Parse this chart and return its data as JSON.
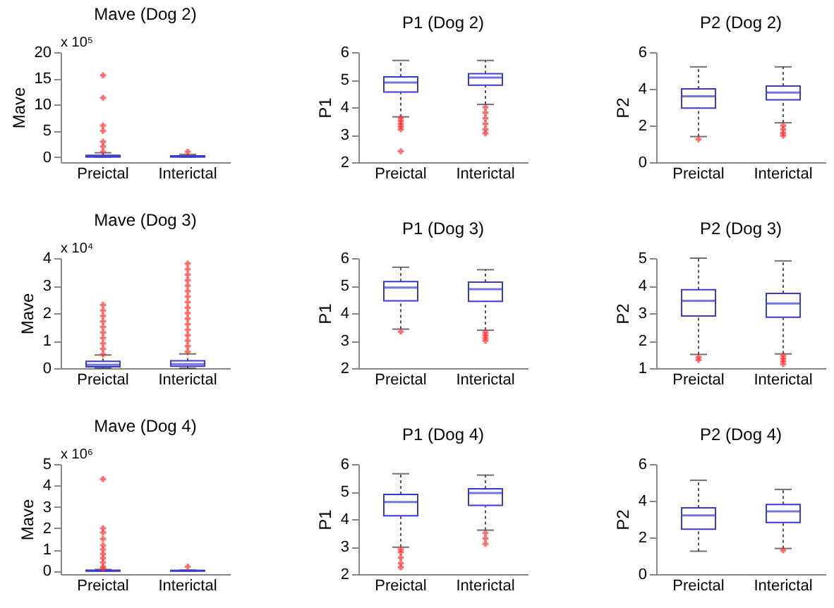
{
  "chart_data": [
    {
      "type": "box",
      "title": "Mave (Dog 2)",
      "ylabel": "Mave",
      "annotations": [
        "x 10⁵"
      ],
      "categories": [
        "Preictal",
        "Interictal"
      ],
      "ylim": [
        -1,
        20
      ],
      "yticks": [
        0,
        5,
        10,
        15,
        20
      ],
      "grid": false,
      "series": [
        {
          "color": "#3a3ad0",
          "boxes": [
            {
              "low": 0,
              "q1": 0,
              "median": 0.1,
              "q3": 0.3,
              "high": 0.8,
              "outliers": [
                1,
                2,
                2.9,
                5,
                6,
                11.3,
                15.6
              ]
            },
            {
              "low": 0,
              "q1": 0,
              "median": 0.1,
              "q3": 0.2,
              "high": 0.5,
              "outliers": [
                1
              ]
            }
          ]
        }
      ]
    },
    {
      "type": "box",
      "title": "P1 (Dog 2)",
      "ylabel": "P1",
      "categories": [
        "Preictal",
        "Interictal"
      ],
      "ylim": [
        2,
        6
      ],
      "yticks": [
        2,
        3,
        4,
        5,
        6
      ],
      "grid": false,
      "series": [
        {
          "color": "#3a3ad0",
          "boxes": [
            {
              "low": 3.65,
              "q1": 4.55,
              "median": 4.9,
              "q3": 5.1,
              "high": 5.7,
              "outliers": [
                3.6,
                3.5,
                3.4,
                3.3,
                3.2,
                2.4
              ]
            },
            {
              "low": 4.1,
              "q1": 4.8,
              "median": 5.08,
              "q3": 5.22,
              "high": 5.7,
              "outliers": [
                4.0,
                3.8,
                3.6,
                3.4,
                3.2,
                3.05
              ]
            }
          ]
        }
      ]
    },
    {
      "type": "box",
      "title": "P2 (Dog 2)",
      "ylabel": "P2",
      "categories": [
        "Preictal",
        "Interictal"
      ],
      "ylim": [
        0,
        6
      ],
      "yticks": [
        0,
        2,
        4,
        6
      ],
      "grid": false,
      "series": [
        {
          "color": "#3a3ad0",
          "boxes": [
            {
              "low": 1.4,
              "q1": 2.95,
              "median": 3.6,
              "q3": 4.0,
              "high": 5.2,
              "outliers": [
                1.25
              ]
            },
            {
              "low": 2.15,
              "q1": 3.4,
              "median": 3.8,
              "q3": 4.15,
              "high": 5.2,
              "outliers": [
                2.0,
                1.8,
                1.6,
                1.45
              ]
            }
          ]
        }
      ]
    },
    {
      "type": "box",
      "title": "Mave (Dog 3)",
      "ylabel": "Mave",
      "annotations": [
        "x 10⁴"
      ],
      "categories": [
        "Preictal",
        "Interictal"
      ],
      "ylim": [
        0,
        4
      ],
      "yticks": [
        0,
        1,
        2,
        3,
        4
      ],
      "grid": false,
      "series": [
        {
          "color": "#3a3ad0",
          "boxes": [
            {
              "low": 0,
              "q1": 0.05,
              "median": 0.12,
              "q3": 0.25,
              "high": 0.48,
              "outliers": [
                0.5,
                0.7,
                0.9,
                1.1,
                1.3,
                1.5,
                1.7,
                1.9,
                2.1,
                2.3
              ]
            },
            {
              "low": 0,
              "q1": 0.07,
              "median": 0.15,
              "q3": 0.27,
              "high": 0.52,
              "outliers": [
                0.6,
                0.8,
                1.0,
                1.2,
                1.4,
                1.6,
                1.8,
                2.0,
                2.2,
                2.4,
                2.6,
                2.8,
                3.0,
                3.2,
                3.4,
                3.6,
                3.8
              ]
            }
          ]
        }
      ]
    },
    {
      "type": "box",
      "title": "P1 (Dog 3)",
      "ylabel": "P1",
      "categories": [
        "Preictal",
        "Interictal"
      ],
      "ylim": [
        2,
        6
      ],
      "yticks": [
        2,
        3,
        4,
        5,
        6
      ],
      "grid": false,
      "series": [
        {
          "color": "#3a3ad0",
          "boxes": [
            {
              "low": 3.42,
              "q1": 4.45,
              "median": 4.93,
              "q3": 5.15,
              "high": 5.67,
              "outliers": [
                3.33
              ]
            },
            {
              "low": 3.38,
              "q1": 4.43,
              "median": 4.87,
              "q3": 5.13,
              "high": 5.58,
              "outliers": [
                3.3,
                3.2,
                3.1,
                3.0
              ]
            }
          ]
        }
      ]
    },
    {
      "type": "box",
      "title": "P2 (Dog 3)",
      "ylabel": "P2",
      "categories": [
        "Preictal",
        "Interictal"
      ],
      "ylim": [
        1,
        5
      ],
      "yticks": [
        1,
        2,
        3,
        4,
        5
      ],
      "grid": false,
      "series": [
        {
          "color": "#3a3ad0",
          "boxes": [
            {
              "low": 1.5,
              "q1": 2.9,
              "median": 3.45,
              "q3": 3.85,
              "high": 5.0,
              "outliers": [
                1.4,
                1.3
              ]
            },
            {
              "low": 1.52,
              "q1": 2.85,
              "median": 3.35,
              "q3": 3.72,
              "high": 4.9,
              "outliers": [
                1.45,
                1.35,
                1.25,
                1.15
              ]
            }
          ]
        }
      ]
    },
    {
      "type": "box",
      "title": "Mave (Dog 4)",
      "ylabel": "Mave",
      "annotations": [
        "x 10⁶"
      ],
      "categories": [
        "Preictal",
        "Interictal"
      ],
      "ylim": [
        -0.15,
        5
      ],
      "yticks": [
        0,
        1,
        2,
        3,
        4,
        5
      ],
      "grid": false,
      "series": [
        {
          "color": "#3a3ad0",
          "boxes": [
            {
              "low": 0,
              "q1": 0,
              "median": 0.01,
              "q3": 0.03,
              "high": 0.07,
              "outliers": [
                0.1,
                0.2,
                0.4,
                0.6,
                0.8,
                1.0,
                1.2,
                1.5,
                1.8,
                2.0,
                4.3
              ]
            },
            {
              "low": 0,
              "q1": 0,
              "median": 0.01,
              "q3": 0.02,
              "high": 0.04,
              "outliers": [
                0.2
              ]
            }
          ]
        }
      ]
    },
    {
      "type": "box",
      "title": "P1 (Dog 4)",
      "ylabel": "P1",
      "categories": [
        "Preictal",
        "Interictal"
      ],
      "ylim": [
        2,
        6
      ],
      "yticks": [
        2,
        3,
        4,
        5,
        6
      ],
      "grid": false,
      "series": [
        {
          "color": "#3a3ad0",
          "boxes": [
            {
              "low": 2.98,
              "q1": 4.12,
              "median": 4.62,
              "q3": 4.9,
              "high": 5.65,
              "outliers": [
                2.9,
                2.8,
                2.6,
                2.4,
                2.25
              ]
            },
            {
              "low": 3.6,
              "q1": 4.5,
              "median": 4.95,
              "q3": 5.1,
              "high": 5.6,
              "outliers": [
                3.5,
                3.3,
                3.1
              ]
            }
          ]
        }
      ]
    },
    {
      "type": "box",
      "title": "P2 (Dog 4)",
      "ylabel": "P2",
      "categories": [
        "Preictal",
        "Interictal"
      ],
      "ylim": [
        0,
        6
      ],
      "yticks": [
        0,
        2,
        4,
        6
      ],
      "grid": false,
      "series": [
        {
          "color": "#3a3ad0",
          "boxes": [
            {
              "low": 1.25,
              "q1": 2.45,
              "median": 3.2,
              "q3": 3.62,
              "high": 5.12
            },
            {
              "low": 1.4,
              "q1": 2.82,
              "median": 3.42,
              "q3": 3.8,
              "high": 4.62,
              "outliers": [
                1.3
              ]
            }
          ]
        }
      ]
    }
  ]
}
